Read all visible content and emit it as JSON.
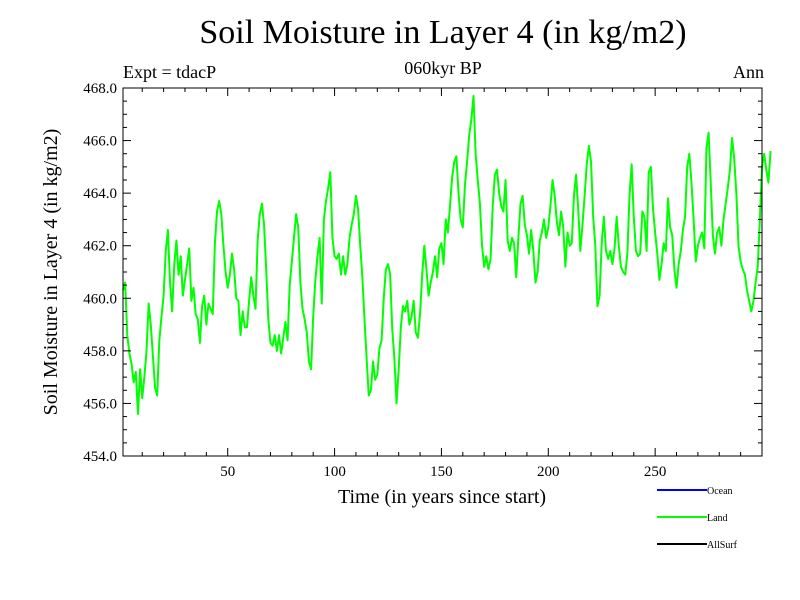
{
  "header": {
    "title": "Soil Moisture in Layer 4 (in kg/m2)",
    "subtitle": "060kyr BP",
    "experiment": "Expt = tdacP",
    "season": "Ann"
  },
  "legend": {
    "items": [
      {
        "label": "Ocean",
        "color": "#0000ff"
      },
      {
        "label": "Land",
        "color": "#00ff00"
      },
      {
        "label": "AllSurf",
        "color": "#000000"
      }
    ]
  },
  "chart_data": {
    "type": "line",
    "title": "Soil Moisture in Layer 4 (in kg/m2)",
    "xlabel": "Time (in years since start)",
    "ylabel": "Soil Moisture in Layer 4 (in kg/m2)",
    "xlim": [
      1,
      300
    ],
    "ylim": [
      454.0,
      468.0
    ],
    "x_ticks": [
      50,
      100,
      150,
      200,
      250
    ],
    "x_tick_labels": [
      "50",
      "100",
      "150",
      "200",
      "250"
    ],
    "y_ticks": [
      454,
      456,
      458,
      460,
      462,
      464,
      466,
      468
    ],
    "y_tick_labels": [
      "454.0",
      "456.0",
      "458.0",
      "460.0",
      "462.0",
      "464.0",
      "466.0",
      "468.0"
    ],
    "series": [
      {
        "name": "Land",
        "color": "#00ff00",
        "x_start": 1,
        "x_step": 1,
        "values": [
          460.3,
          460.6,
          458.6,
          457.9,
          457.5,
          456.8,
          457.2,
          455.6,
          457.3,
          456.2,
          457.0,
          458.0,
          459.8,
          459.0,
          457.8,
          456.6,
          456.3,
          458.4,
          459.3,
          460.1,
          461.8,
          462.6,
          460.6,
          459.5,
          461.3,
          462.2,
          460.9,
          461.6,
          460.1,
          460.7,
          461.3,
          461.9,
          459.9,
          460.4,
          459.4,
          459.2,
          458.3,
          459.7,
          460.1,
          459.0,
          459.8,
          459.6,
          459.4,
          462.1,
          463.3,
          463.7,
          463.2,
          462.0,
          461.0,
          460.4,
          460.9,
          461.7,
          461.1,
          460.0,
          459.9,
          458.6,
          459.5,
          458.9,
          458.9,
          459.9,
          460.8,
          460.1,
          459.6,
          462.2,
          463.2,
          463.6,
          462.8,
          461.1,
          459.2,
          458.3,
          458.2,
          458.6,
          458.0,
          458.6,
          457.9,
          458.5,
          459.1,
          458.4,
          460.5,
          461.4,
          462.3,
          463.2,
          462.7,
          460.6,
          459.6,
          459.2,
          458.7,
          457.6,
          457.3,
          459.3,
          460.7,
          461.6,
          462.3,
          459.8,
          463.0,
          463.7,
          464.2,
          464.8,
          462.3,
          461.6,
          461.5,
          461.7,
          460.9,
          461.6,
          460.9,
          461.3,
          462.3,
          462.8,
          463.2,
          463.9,
          463.4,
          462.0,
          460.8,
          459.2,
          457.7,
          456.3,
          456.5,
          457.6,
          456.9,
          457.1,
          458.1,
          458.4,
          460.0,
          461.1,
          461.3,
          460.9,
          458.8,
          457.7,
          456.0,
          457.3,
          458.9,
          459.7,
          459.5,
          459.9,
          459.0,
          459.3,
          459.9,
          458.7,
          458.5,
          459.4,
          460.9,
          462.0,
          461.1,
          460.1,
          460.6,
          461.0,
          461.6,
          460.8,
          461.9,
          462.1,
          461.3,
          463.0,
          462.5,
          463.5,
          464.6,
          465.2,
          465.4,
          464.0,
          463.0,
          462.7,
          464.3,
          465.2,
          466.2,
          466.8,
          467.7,
          465.5,
          464.5,
          463.6,
          462.0,
          461.2,
          461.6,
          461.1,
          461.5,
          463.5,
          464.7,
          464.9,
          464.0,
          463.5,
          463.3,
          464.5,
          462.2,
          461.8,
          462.3,
          462.1,
          460.8,
          462.3,
          463.6,
          463.9,
          462.8,
          462.4,
          461.7,
          462.6,
          461.8,
          460.6,
          461.0,
          462.2,
          462.5,
          463.0,
          462.3,
          462.7,
          463.5,
          464.5,
          463.9,
          462.9,
          462.4,
          463.3,
          462.7,
          461.2,
          462.5,
          462.0,
          462.1,
          463.9,
          464.7,
          463.4,
          461.8,
          462.8,
          463.9,
          465.1,
          465.8,
          465.2,
          463.1,
          462.0,
          459.7,
          460.1,
          462.1,
          463.1,
          461.8,
          461.5,
          461.8,
          461.3,
          461.9,
          463.1,
          462.0,
          461.2,
          461.0,
          460.9,
          461.7,
          463.9,
          465.1,
          463.1,
          461.8,
          461.6,
          461.7,
          463.3,
          463.1,
          461.8,
          464.8,
          465.0,
          463.4,
          462.5,
          461.7,
          460.7,
          461.3,
          462.1,
          461.8,
          463.8,
          462.7,
          462.4,
          461.1,
          460.4,
          461.3,
          461.8,
          462.6,
          463.1,
          465.0,
          465.5,
          464.4,
          463.0,
          461.4,
          462.0,
          462.3,
          462.5,
          461.9,
          465.7,
          466.3,
          464.4,
          462.4,
          461.7,
          462.5,
          462.7,
          462.0,
          463.0,
          463.6,
          464.2,
          464.9,
          466.1,
          465.3,
          464.0,
          462.0,
          461.4,
          461.1,
          460.9,
          460.3,
          459.9,
          459.5,
          459.9,
          460.6,
          461.2,
          463.0,
          465.0,
          465.5,
          464.9,
          464.4,
          465.6
        ]
      },
      {
        "name": "Ocean",
        "color": "#0000ff",
        "values": []
      },
      {
        "name": "AllSurf",
        "color": "#000000",
        "values": []
      }
    ]
  }
}
